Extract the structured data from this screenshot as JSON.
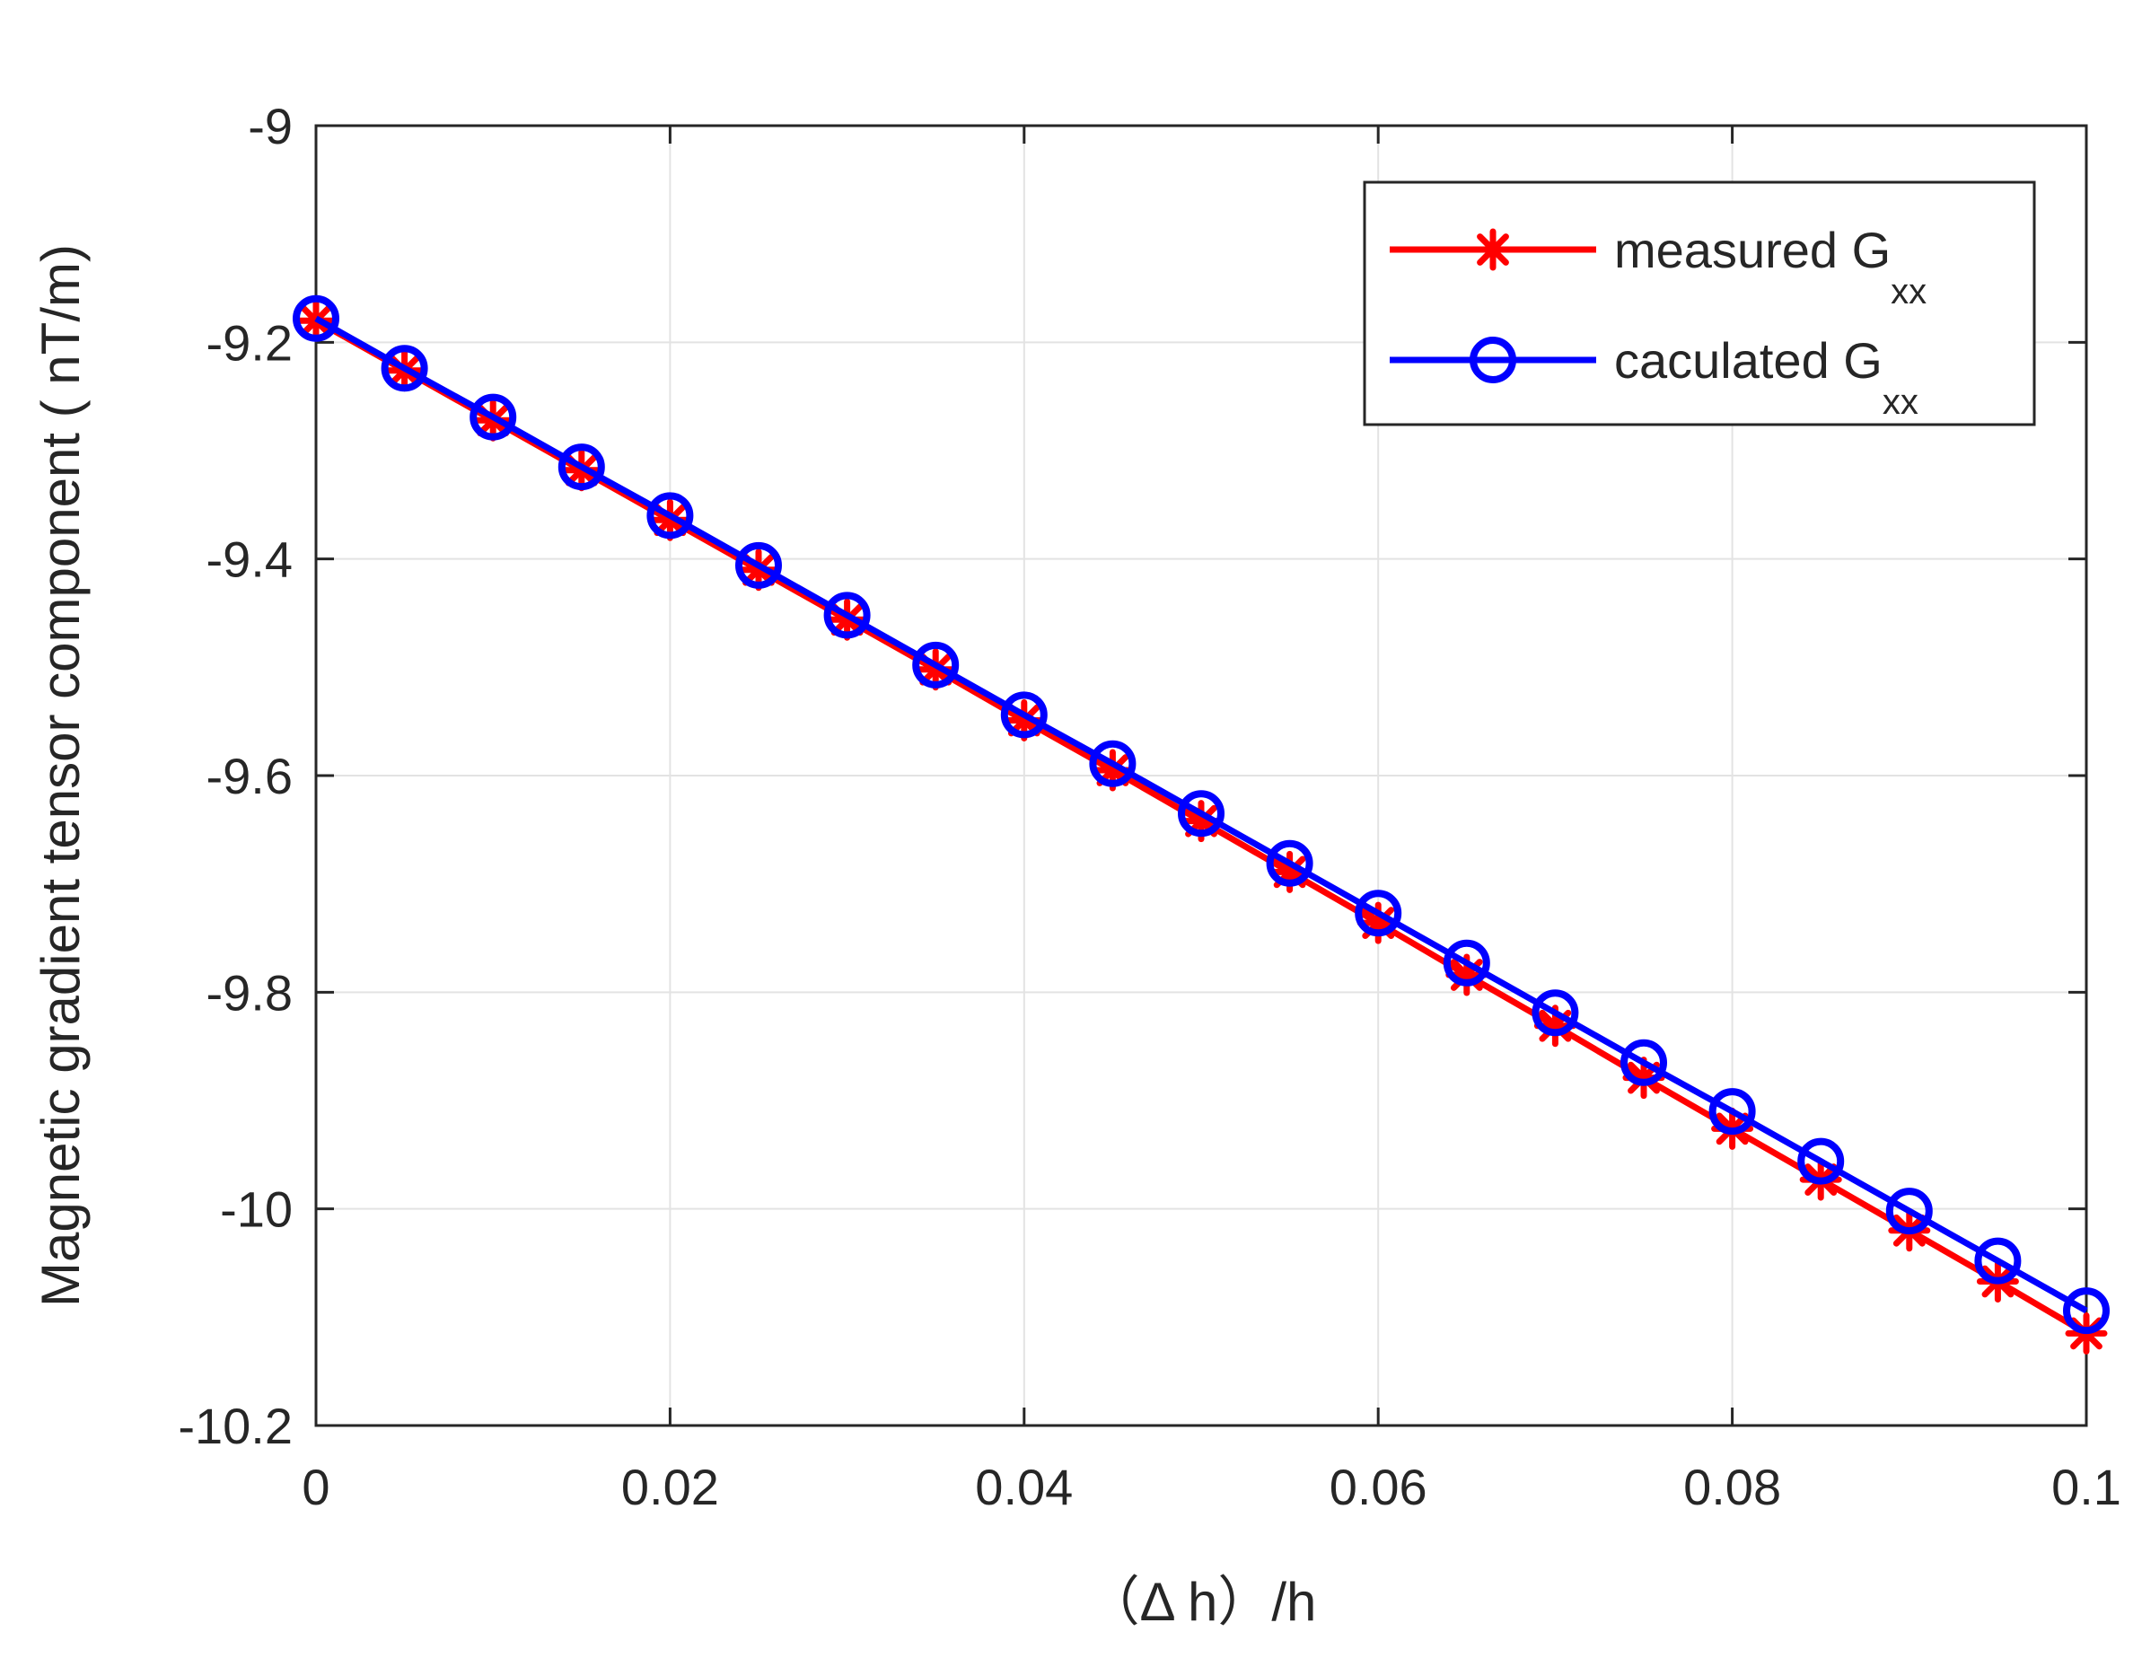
{
  "chart_data": {
    "type": "line",
    "title": "",
    "xlabel": "（Δ h）/h",
    "ylabel": "Magnetic gradient tensor component ( nT/m)",
    "xlim": [
      0,
      0.1
    ],
    "ylim": [
      -10.2,
      -9
    ],
    "x_ticks": [
      0,
      0.02,
      0.04,
      0.06,
      0.08,
      0.1
    ],
    "x_tick_labels": [
      "0",
      "0.02",
      "0.04",
      "0.06",
      "0.08",
      "0.1"
    ],
    "y_ticks": [
      -9,
      -9.2,
      -9.4,
      -9.6,
      -9.8,
      -10,
      -10.2
    ],
    "y_tick_labels": [
      "-9",
      "-9.2",
      "-9.4",
      "-9.6",
      "-9.8",
      "-10",
      "-10.2"
    ],
    "grid": true,
    "legend_position": "top-right",
    "x": [
      0,
      0.005,
      0.01,
      0.015,
      0.02,
      0.025,
      0.03,
      0.035,
      0.04,
      0.045,
      0.05,
      0.055,
      0.06,
      0.065,
      0.07,
      0.075,
      0.08,
      0.085,
      0.09,
      0.095,
      0.1
    ],
    "series": [
      {
        "name": "measured G",
        "name_sub": "xx",
        "color": "#ff0000",
        "marker": "asterisk",
        "values": [
          -9.18,
          -9.226,
          -9.272,
          -9.318,
          -9.364,
          -9.41,
          -9.456,
          -9.502,
          -9.549,
          -9.595,
          -9.642,
          -9.689,
          -9.736,
          -9.784,
          -9.831,
          -9.879,
          -9.926,
          -9.973,
          -10.02,
          -10.067,
          -10.115
        ]
      },
      {
        "name": "caculated G",
        "name_sub": "xx",
        "color": "#0000ff",
        "marker": "circle",
        "values": [
          -9.178,
          -9.224,
          -9.269,
          -9.315,
          -9.36,
          -9.406,
          -9.452,
          -9.498,
          -9.544,
          -9.589,
          -9.635,
          -9.681,
          -9.727,
          -9.773,
          -9.819,
          -9.865,
          -9.91,
          -9.956,
          -10.002,
          -10.048,
          -10.094
        ]
      }
    ]
  }
}
